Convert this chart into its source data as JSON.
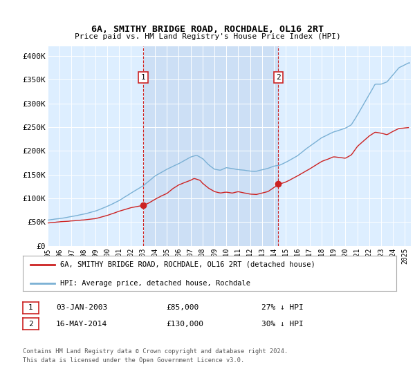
{
  "title": "6A, SMITHY BRIDGE ROAD, ROCHDALE, OL16 2RT",
  "subtitle": "Price paid vs. HM Land Registry's House Price Index (HPI)",
  "plot_bg_color": "#ddeeff",
  "highlight_color": "#ccdff5",
  "hpi_color": "#7ab0d4",
  "price_color": "#cc2222",
  "marker_color": "#cc2222",
  "vline_color": "#cc2222",
  "ylabel_ticks": [
    "£0",
    "£50K",
    "£100K",
    "£150K",
    "£200K",
    "£250K",
    "£300K",
    "£350K",
    "£400K"
  ],
  "ytick_values": [
    0,
    50000,
    100000,
    150000,
    200000,
    250000,
    300000,
    350000,
    400000
  ],
  "xlim_start": 1995.0,
  "xlim_end": 2025.5,
  "ylim_min": 0,
  "ylim_max": 420000,
  "sale1_year": 2003.01,
  "sale1_price": 85000,
  "sale1_label": "1",
  "sale1_date": "03-JAN-2003",
  "sale1_pct": "27% ↓ HPI",
  "sale2_year": 2014.37,
  "sale2_price": 130000,
  "sale2_label": "2",
  "sale2_date": "16-MAY-2014",
  "sale2_pct": "30% ↓ HPI",
  "legend_label_price": "6A, SMITHY BRIDGE ROAD, ROCHDALE, OL16 2RT (detached house)",
  "legend_label_hpi": "HPI: Average price, detached house, Rochdale",
  "footer_line1": "Contains HM Land Registry data © Crown copyright and database right 2024.",
  "footer_line2": "This data is licensed under the Open Government Licence v3.0.",
  "xtick_years": [
    1995,
    1996,
    1997,
    1998,
    1999,
    2000,
    2001,
    2002,
    2003,
    2004,
    2005,
    2006,
    2007,
    2008,
    2009,
    2010,
    2011,
    2012,
    2013,
    2014,
    2015,
    2016,
    2017,
    2018,
    2019,
    2020,
    2021,
    2022,
    2023,
    2024,
    2025
  ]
}
